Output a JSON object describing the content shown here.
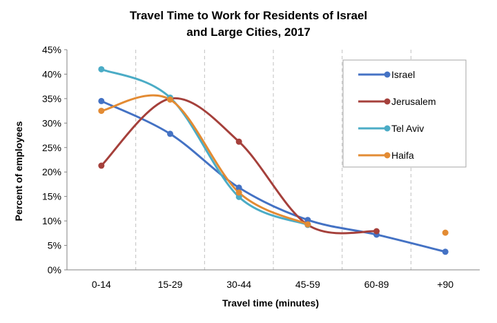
{
  "chart_data": {
    "type": "line",
    "title_line1": "Travel Time to Work for Residents of Israel",
    "title_line2": "and Large Cities, 2017",
    "xlabel": "Travel time (minutes)",
    "ylabel": "Percent of employees",
    "categories": [
      "0-14",
      "15-29",
      "30-44",
      "45-59",
      "60-89",
      "+90"
    ],
    "y_ticks": [
      "0%",
      "5%",
      "10%",
      "15%",
      "20%",
      "25%",
      "30%",
      "35%",
      "40%",
      "45%"
    ],
    "ylim": [
      0,
      45
    ],
    "y_unit": "%",
    "grid": "vertical dashed",
    "legend_position": "top-right",
    "smooth_lines": true,
    "series": [
      {
        "name": "Israel",
        "color": "#4472C4",
        "values": [
          34.5,
          27.8,
          16.8,
          10.2,
          7.2,
          3.7
        ]
      },
      {
        "name": "Jerusalem",
        "color": "#A5403B",
        "values": [
          21.3,
          35.0,
          26.2,
          9.2,
          7.9,
          null
        ]
      },
      {
        "name": "Tel Aviv",
        "color": "#4BACC6",
        "values": [
          41.0,
          35.2,
          14.9,
          9.2,
          null,
          null
        ]
      },
      {
        "name": "Haifa",
        "color": "#E38B33",
        "values": [
          32.5,
          34.8,
          15.8,
          9.3,
          null,
          7.6
        ]
      }
    ]
  }
}
